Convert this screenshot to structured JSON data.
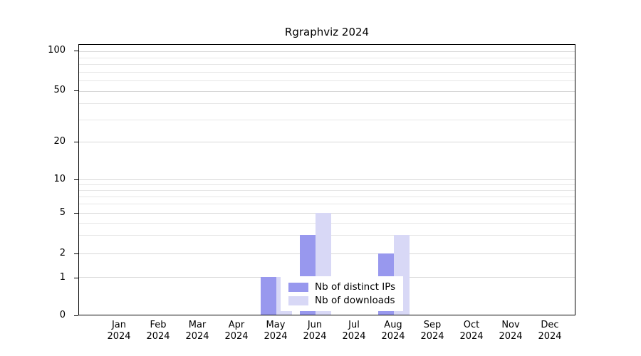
{
  "chart_data": {
    "type": "bar",
    "title": "Rgraphviz 2024",
    "year_label": "2024",
    "categories": [
      "Jan",
      "Feb",
      "Mar",
      "Apr",
      "May",
      "Jun",
      "Jul",
      "Aug",
      "Sep",
      "Oct",
      "Nov",
      "Dec"
    ],
    "y_ticks": [
      0,
      1,
      2,
      5,
      10,
      20,
      50,
      100
    ],
    "y_minor_gridlines": [
      3,
      4,
      6,
      7,
      8,
      9,
      30,
      40,
      60,
      70,
      80,
      90
    ],
    "ylim": [
      0,
      100
    ],
    "axis_scale": "log-like",
    "grid": true,
    "legend_position": "bottom-center-inside",
    "series": [
      {
        "name": "Nb of distinct IPs",
        "color": "#9898EE",
        "values": [
          0,
          0,
          0,
          0,
          1,
          3,
          0,
          2,
          0,
          0,
          0,
          0
        ]
      },
      {
        "name": "Nb of downloads",
        "color": "#D8D8F6",
        "values": [
          0,
          0,
          0,
          0,
          1,
          5,
          0,
          3,
          0,
          0,
          0,
          0
        ]
      }
    ]
  }
}
